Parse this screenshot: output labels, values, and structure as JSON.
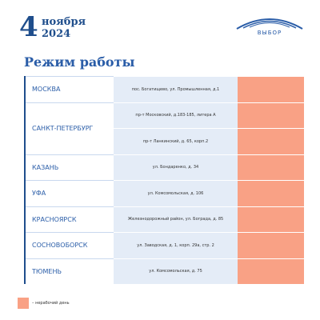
{
  "header": {
    "day": "4",
    "month": "ноября",
    "year": "2024",
    "logo": "ВЫБОР"
  },
  "title": "Режим работы",
  "table": {
    "rows": [
      {
        "city": "МОСКВА",
        "addresses": [
          "пос. Богатищево, ул. Промышленная, д.1"
        ]
      },
      {
        "city": "САНКТ-ПЕТЕРБУРГ",
        "addresses": [
          "пр-т Московский, д.183-185, литера А",
          "пр-т Ланкинский, д. 65, корп.2"
        ]
      },
      {
        "city": "КАЗАНЬ",
        "addresses": [
          "ул. Бондаренко,  д. 34"
        ]
      },
      {
        "city": "УФА",
        "addresses": [
          "ул. Комсомольская,  д. 106"
        ]
      },
      {
        "city": "КРАСНОЯРСК",
        "addresses": [
          "Железнодорожный район, ул. Бограда, д. 85"
        ]
      },
      {
        "city": "СОСНОВОБОРСК",
        "addresses": [
          "ул. Заводская, д. 1, корп. 29а, стр. 2"
        ]
      },
      {
        "city": "ТЮМЕНЬ",
        "addresses": [
          "ул. Комсомольская, д. 75"
        ]
      }
    ]
  },
  "legend": "– нерабочий день"
}
